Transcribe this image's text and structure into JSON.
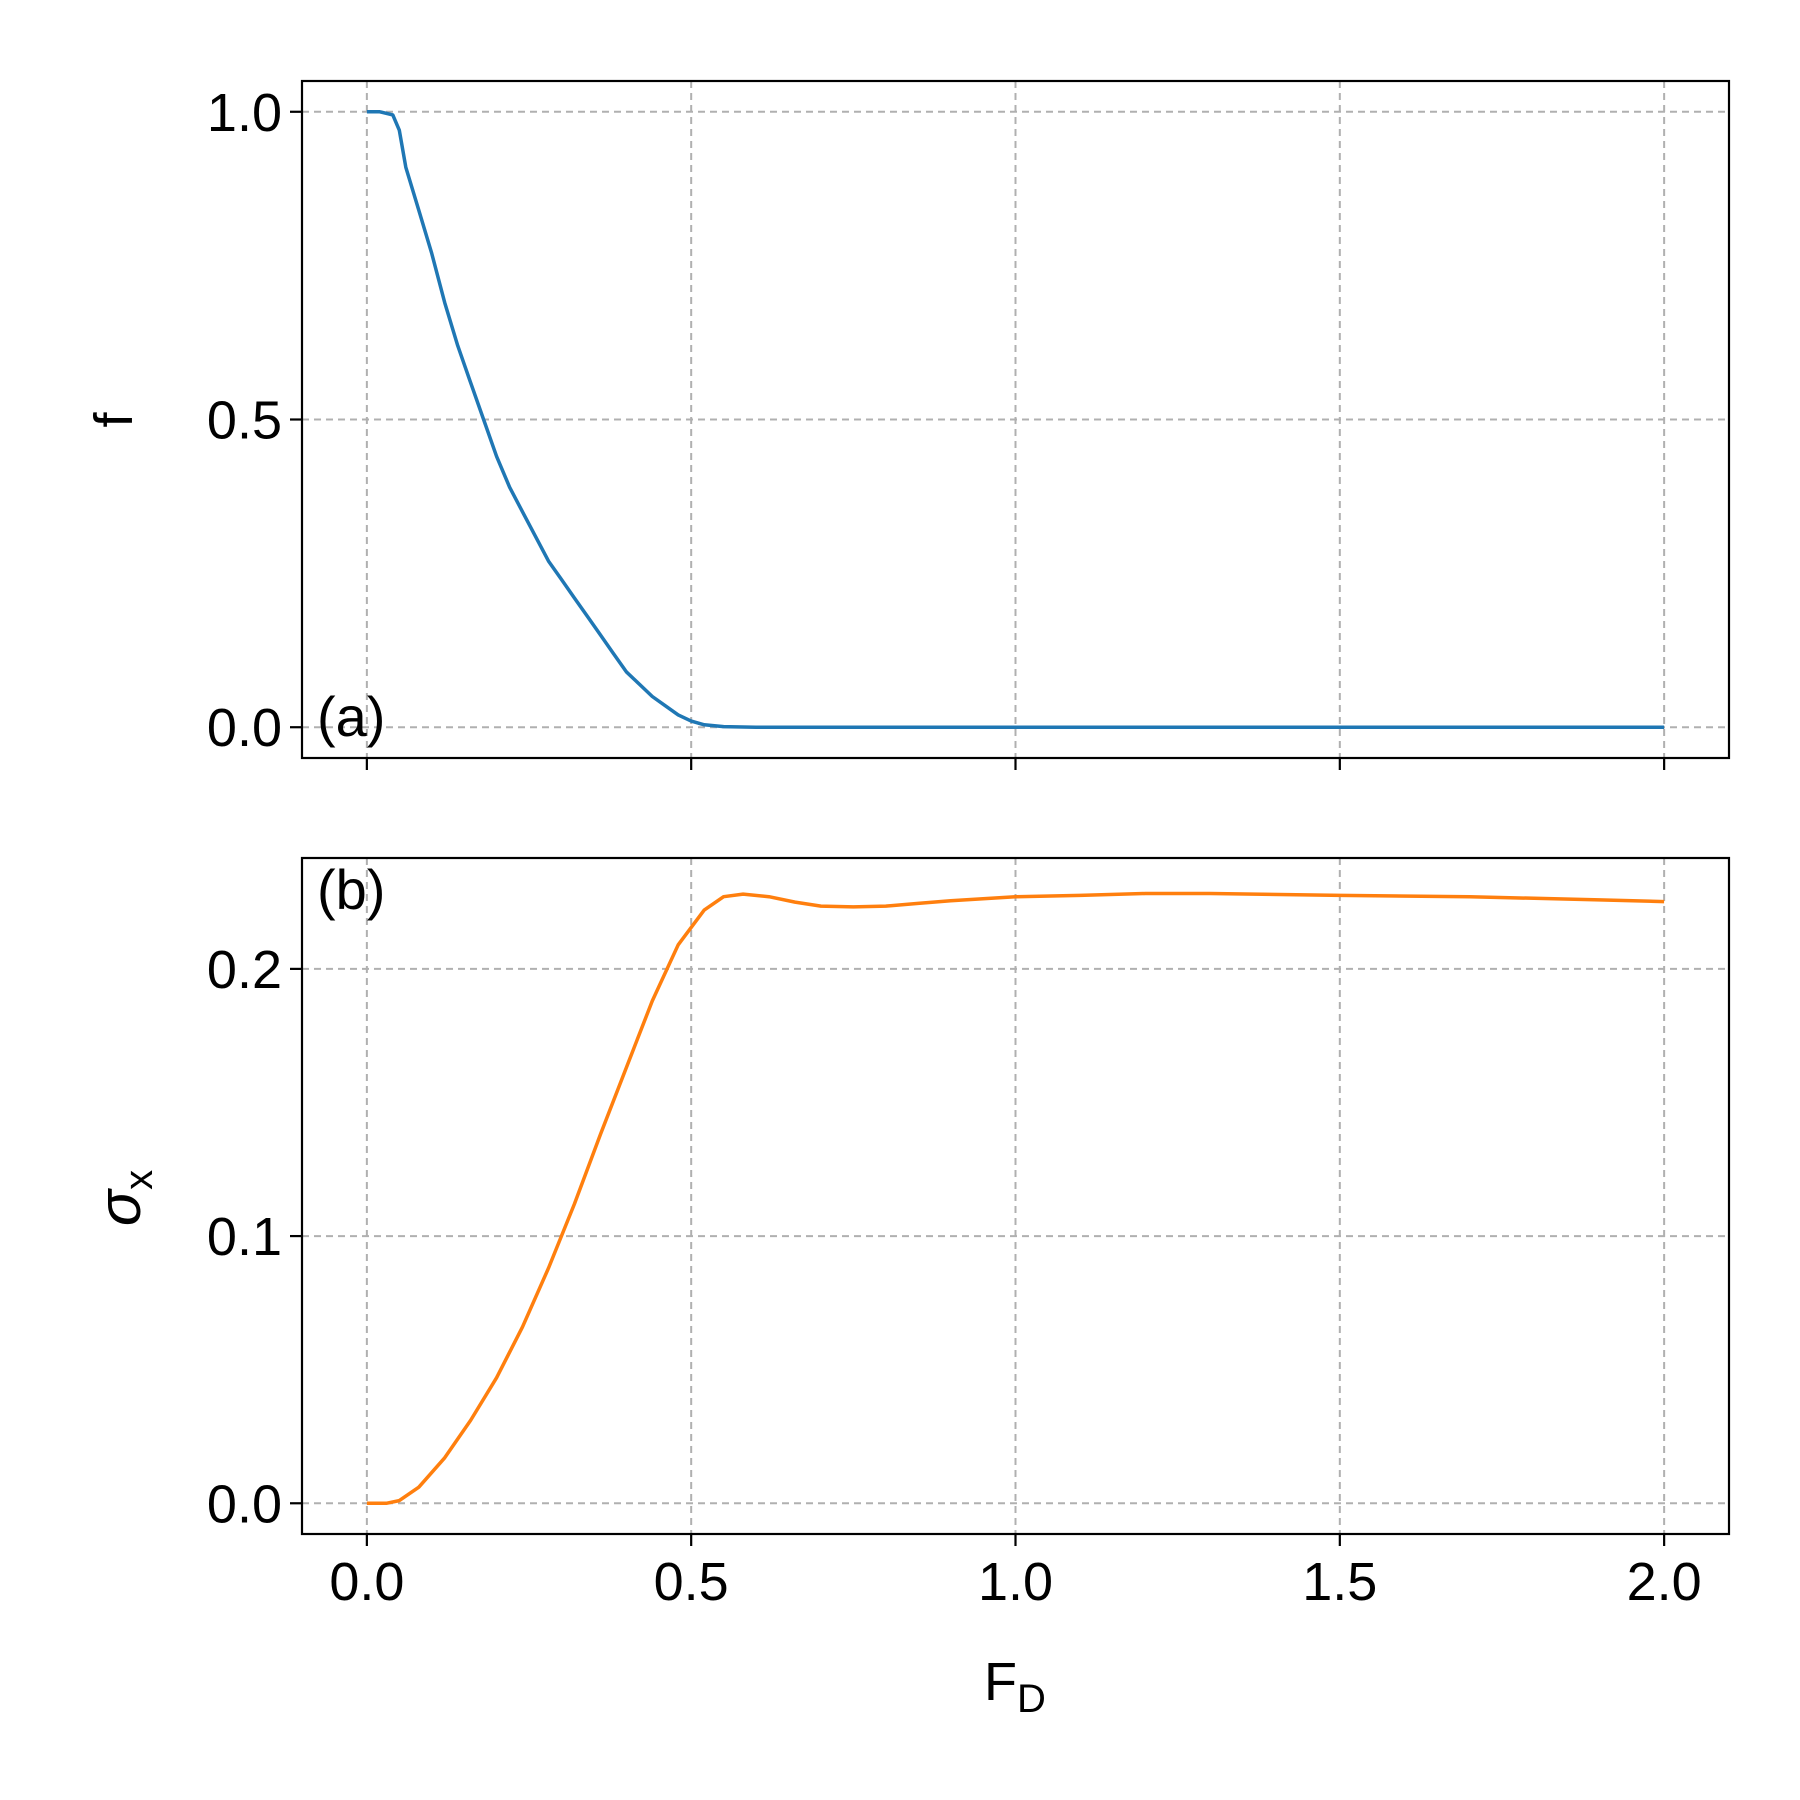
{
  "chart_data": [
    {
      "type": "line",
      "panel_label": "(a)",
      "xlabel": "",
      "ylabel": "f",
      "xlim": [
        -0.1,
        2.1
      ],
      "ylim": [
        -0.05,
        1.05
      ],
      "xticks": [
        0.0,
        0.5,
        1.0,
        1.5,
        2.0
      ],
      "yticks": [
        0.0,
        0.5,
        1.0
      ],
      "ytick_labels": [
        "0.0",
        "0.5",
        "1.0"
      ],
      "grid": true,
      "series": [
        {
          "color": "#1f77b4",
          "x": [
            0.0,
            0.02,
            0.04,
            0.05,
            0.06,
            0.08,
            0.1,
            0.12,
            0.14,
            0.16,
            0.18,
            0.2,
            0.22,
            0.24,
            0.26,
            0.28,
            0.3,
            0.32,
            0.34,
            0.36,
            0.38,
            0.4,
            0.42,
            0.44,
            0.46,
            0.48,
            0.5,
            0.52,
            0.55,
            0.6,
            0.7,
            1.0,
            1.5,
            2.0
          ],
          "y": [
            1.0,
            1.0,
            0.995,
            0.97,
            0.91,
            0.84,
            0.77,
            0.69,
            0.62,
            0.56,
            0.5,
            0.44,
            0.39,
            0.35,
            0.31,
            0.27,
            0.24,
            0.21,
            0.18,
            0.15,
            0.12,
            0.09,
            0.07,
            0.05,
            0.035,
            0.02,
            0.01,
            0.004,
            0.001,
            0.0,
            0.0,
            0.0,
            0.0,
            0.0
          ]
        }
      ]
    },
    {
      "type": "line",
      "panel_label": "(b)",
      "xlabel_main": "F",
      "xlabel_sub": "D",
      "ylabel_main": "σ",
      "ylabel_sub": "x",
      "xlim": [
        -0.1,
        2.1
      ],
      "ylim": [
        -0.0115,
        0.2415
      ],
      "xticks": [
        0.0,
        0.5,
        1.0,
        1.5,
        2.0
      ],
      "xtick_labels": [
        "0.0",
        "0.5",
        "1.0",
        "1.5",
        "2.0"
      ],
      "yticks": [
        0.0,
        0.1,
        0.2
      ],
      "ytick_labels": [
        "0.0",
        "0.1",
        "0.2"
      ],
      "grid": true,
      "series": [
        {
          "color": "#ff7f0e",
          "x": [
            0.0,
            0.03,
            0.05,
            0.08,
            0.12,
            0.16,
            0.2,
            0.24,
            0.28,
            0.32,
            0.36,
            0.4,
            0.44,
            0.48,
            0.52,
            0.55,
            0.58,
            0.62,
            0.66,
            0.7,
            0.75,
            0.8,
            0.85,
            0.9,
            1.0,
            1.1,
            1.2,
            1.3,
            1.5,
            1.7,
            1.9,
            2.0
          ],
          "y": [
            0.0,
            0.0,
            0.001,
            0.006,
            0.017,
            0.031,
            0.047,
            0.066,
            0.088,
            0.112,
            0.138,
            0.163,
            0.188,
            0.209,
            0.222,
            0.227,
            0.228,
            0.227,
            0.225,
            0.2235,
            0.2232,
            0.2235,
            0.2245,
            0.2255,
            0.227,
            0.2275,
            0.2282,
            0.2282,
            0.2275,
            0.227,
            0.2258,
            0.2252
          ]
        }
      ]
    }
  ]
}
